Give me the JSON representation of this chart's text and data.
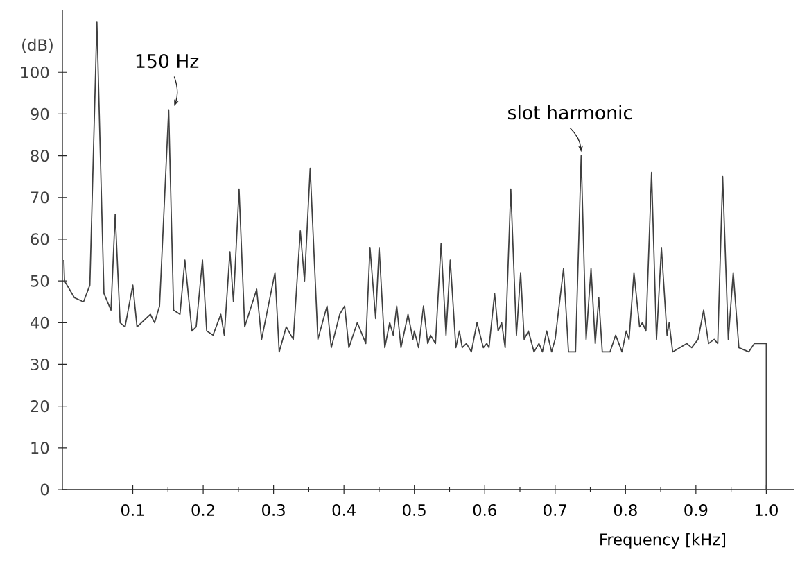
{
  "chart_data": {
    "type": "line",
    "xlabel": "Frequency [kHz]",
    "ylabel": "(dB)",
    "x": [
      0.002,
      0.003,
      0.017,
      0.03,
      0.039,
      0.049,
      0.059,
      0.069,
      0.075,
      0.082,
      0.089,
      0.1,
      0.106,
      0.125,
      0.131,
      0.138,
      0.151,
      0.158,
      0.167,
      0.174,
      0.184,
      0.19,
      0.199,
      0.205,
      0.214,
      0.225,
      0.23,
      0.238,
      0.243,
      0.251,
      0.259,
      0.276,
      0.283,
      0.302,
      0.308,
      0.318,
      0.328,
      0.338,
      0.344,
      0.352,
      0.363,
      0.371,
      0.376,
      0.382,
      0.394,
      0.401,
      0.407,
      0.419,
      0.431,
      0.437,
      0.445,
      0.45,
      0.458,
      0.465,
      0.47,
      0.475,
      0.481,
      0.491,
      0.498,
      0.5,
      0.506,
      0.513,
      0.519,
      0.523,
      0.53,
      0.538,
      0.545,
      0.551,
      0.559,
      0.564,
      0.568,
      0.574,
      0.581,
      0.589,
      0.598,
      0.603,
      0.606,
      0.614,
      0.619,
      0.624,
      0.629,
      0.637,
      0.645,
      0.651,
      0.656,
      0.662,
      0.67,
      0.677,
      0.682,
      0.688,
      0.695,
      0.7,
      0.712,
      0.719,
      0.729,
      0.737,
      0.744,
      0.751,
      0.757,
      0.762,
      0.767,
      0.778,
      0.786,
      0.795,
      0.801,
      0.805,
      0.812,
      0.82,
      0.824,
      0.829,
      0.837,
      0.844,
      0.851,
      0.859,
      0.862,
      0.867,
      0.877,
      0.887,
      0.894,
      0.903,
      0.911,
      0.918,
      0.926,
      0.931,
      0.938,
      0.946,
      0.953,
      0.961,
      0.975,
      0.983,
      0.993,
      1.0,
      1.0
    ],
    "series": [
      {
        "color": "#404040",
        "values": [
          55,
          50,
          46,
          45,
          49,
          112,
          47,
          43,
          66,
          40,
          39,
          49,
          39,
          42,
          40,
          44,
          91,
          43,
          42,
          55,
          38,
          39,
          55,
          38,
          37,
          42,
          37,
          57,
          45,
          72,
          39,
          48,
          36,
          52,
          33,
          39,
          36,
          62,
          50,
          77,
          36,
          41,
          44,
          34,
          42,
          44,
          34,
          40,
          35,
          58,
          41,
          58,
          34,
          40,
          37,
          44,
          34,
          42,
          36,
          38,
          34,
          44,
          35,
          37,
          35,
          59,
          37,
          55,
          34,
          38,
          34,
          35,
          33,
          40,
          34,
          35,
          34,
          47,
          38,
          40,
          34,
          72,
          37,
          52,
          36,
          38,
          33,
          35,
          33,
          38,
          33,
          36,
          53,
          33,
          33,
          80,
          36,
          53,
          35,
          46,
          33,
          33,
          37,
          33,
          38,
          36,
          52,
          39,
          40,
          38,
          76,
          36,
          58,
          37,
          40,
          33,
          34,
          35,
          34,
          36,
          43,
          35,
          36,
          35,
          75,
          36,
          52,
          34,
          33,
          35,
          35,
          35,
          0
        ]
      }
    ],
    "xlim": [
      0,
      1.04
    ],
    "ylim": [
      0,
      115
    ],
    "xticks": [
      0.1,
      0.2,
      0.3,
      0.4,
      0.5,
      0.6,
      0.7,
      0.8,
      0.9,
      {
        "value": 1.0,
        "label": "1.0"
      }
    ],
    "yticks": [
      0,
      10,
      20,
      30,
      40,
      50,
      60,
      70,
      80,
      90,
      100
    ],
    "annotations": [
      {
        "text": "150 Hz",
        "x": 0.151,
        "y": 91
      },
      {
        "text": "slot harmonic",
        "x": 0.737,
        "y": 80
      }
    ],
    "grid": false,
    "marker": "none",
    "line_style": "solid"
  }
}
